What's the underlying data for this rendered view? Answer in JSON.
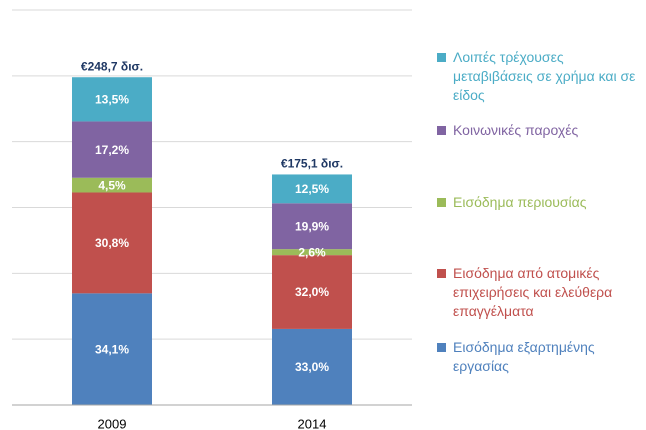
{
  "chart_data": {
    "type": "stacked_bar",
    "categories": [
      "2009",
      "2014"
    ],
    "ylim": [
      0,
      300
    ],
    "yticks": [
      0,
      50,
      100,
      150,
      200,
      250,
      300
    ],
    "grid": true,
    "totals": {
      "values": [
        248.7,
        175.1
      ],
      "value_labels": [
        "€248,7 δισ.",
        "€175,1 δισ."
      ]
    },
    "series": [
      {
        "name": "Εισόδημα εξαρτημένης εργασίας",
        "color": "#4f81bd",
        "values": [
          34.1,
          33.0
        ],
        "value_labels": [
          "34,1%",
          "33,0%"
        ]
      },
      {
        "name": "Εισόδημα από ατομικές επιχειρήσεις και ελεύθερα επαγγέλματα",
        "color": "#c0504d",
        "values": [
          30.8,
          32.0
        ],
        "value_labels": [
          "30,8%",
          "32,0%"
        ]
      },
      {
        "name": "Εισόδημα περιουσίας",
        "color": "#9bbb59",
        "values": [
          4.5,
          2.6
        ],
        "value_labels": [
          "4,5%",
          "2,6%"
        ]
      },
      {
        "name": "Κοινωνικές παροχές",
        "color": "#8064a2",
        "values": [
          17.2,
          19.9
        ],
        "value_labels": [
          "17,2%",
          "19,9%"
        ]
      },
      {
        "name": "Λοιπές τρέχουσες μεταβιβάσεις σε χρήμα και σε είδος",
        "color": "#4bacc6",
        "values": [
          13.5,
          12.5
        ],
        "value_labels": [
          "13,5%",
          "12,5%"
        ]
      }
    ]
  }
}
